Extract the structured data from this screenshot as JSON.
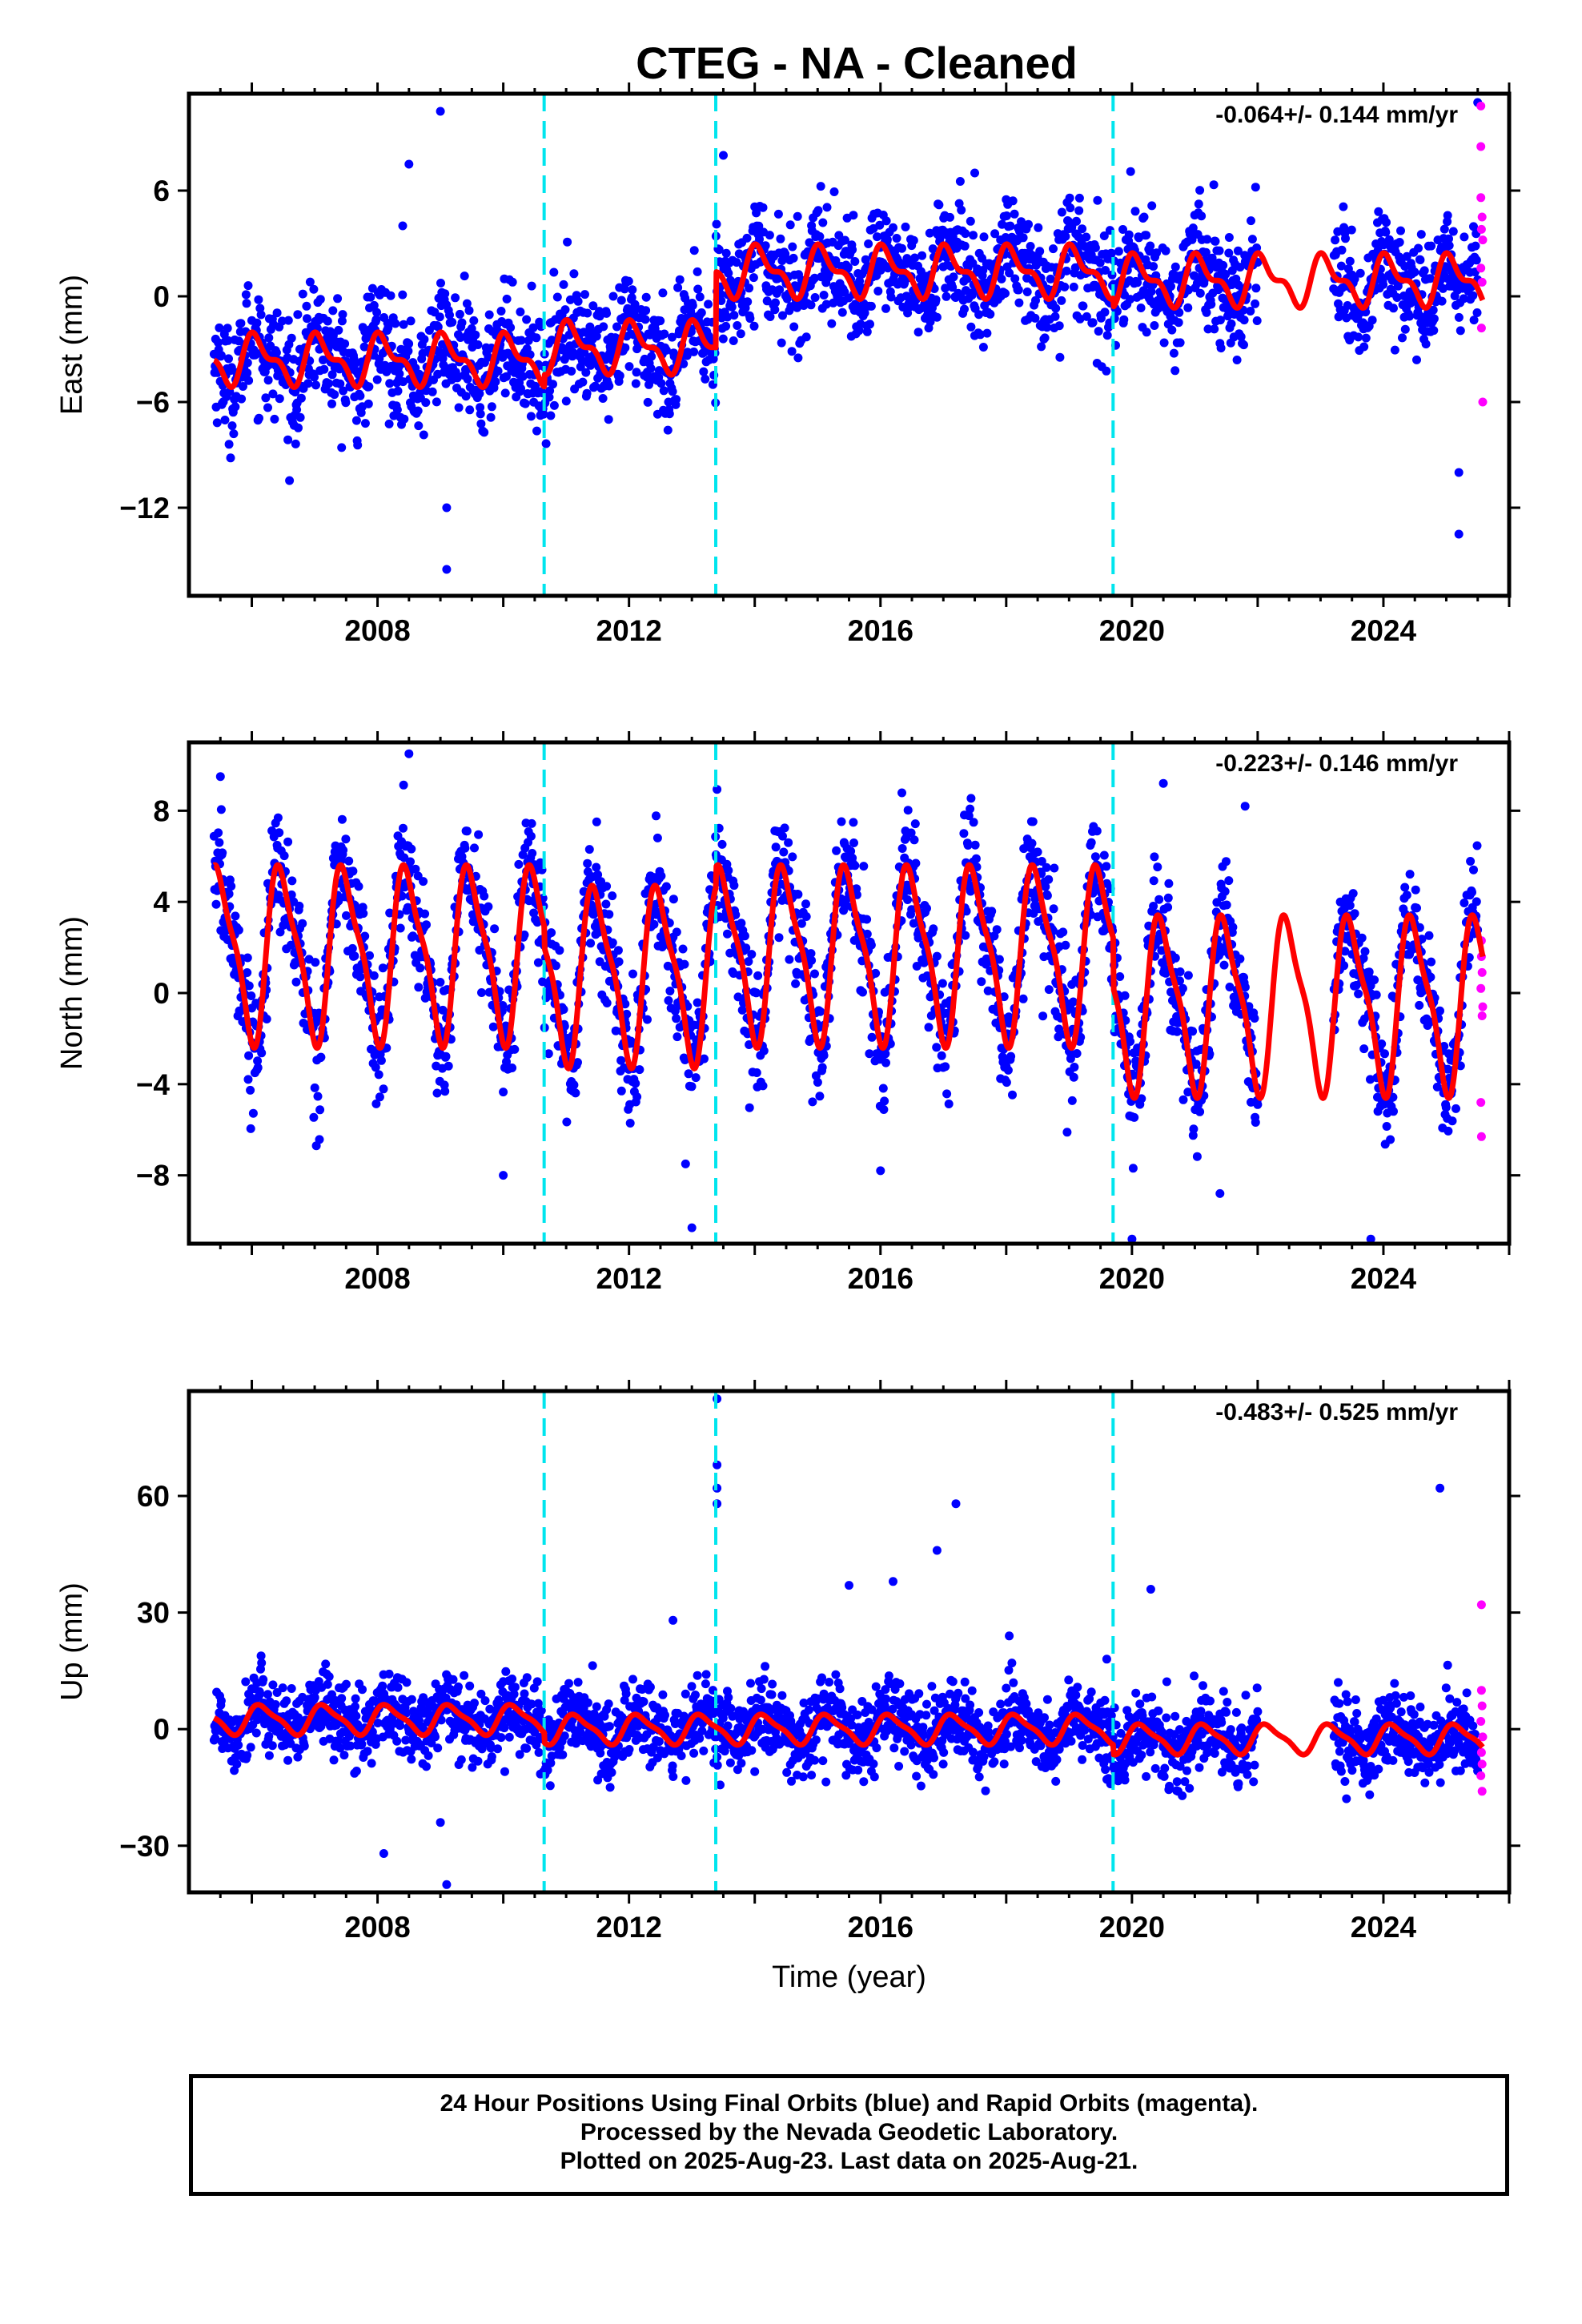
{
  "title": "CTEG  - NA - Cleaned",
  "footer": {
    "line1": "24 Hour Positions Using Final Orbits (blue) and Rapid Orbits (magenta).",
    "line2": "Processed by the Nevada Geodetic Laboratory.",
    "line3": "Plotted on 2025-Aug-23. Last data on 2025-Aug-21."
  },
  "colors": {
    "final": "#0000ff",
    "rapid": "#ff00ff",
    "model": "#ff0000",
    "steps": "#00e5ee"
  },
  "chart_data": [
    {
      "type": "scatter",
      "ylabel": "East (mm)",
      "xlabel": "",
      "rate": "-0.064+/- 0.144 mm/yr",
      "xlim": [
        2005.0,
        2026.0
      ],
      "ylim": [
        -17.0,
        11.5
      ],
      "yticks": [
        6,
        0,
        -6,
        -12
      ],
      "ytick_labels": [
        "6",
        "0",
        "−6",
        "−12"
      ],
      "xticks": [
        2008,
        2012,
        2016,
        2020,
        2024
      ],
      "xtick_labels": [
        "2008",
        "2012",
        "2016",
        "2020",
        "2024"
      ],
      "steps": [
        2010.65,
        2013.38,
        2019.7
      ],
      "gap": [
        2022.0,
        2023.2
      ],
      "data_start": 2005.4,
      "data_end": 2025.5,
      "rapid_start": 2025.5,
      "model": {
        "segments": [
          {
            "start": 2005.4,
            "end": 2010.65,
            "offset": -3.6
          },
          {
            "start": 2010.65,
            "end": 2013.38,
            "offset": -2.9
          },
          {
            "start": 2013.38,
            "end": 2019.7,
            "offset": 1.4
          },
          {
            "start": 2019.7,
            "end": 2025.6,
            "offset": 0.9
          }
        ],
        "annual_amp": 1.2,
        "annual_phase": 1.0,
        "semiannual_amp": 0.6,
        "semiannual_phase": 2.0
      },
      "scatter_sd": 1.6,
      "outliers": [
        [
          2009.0,
          10.5
        ],
        [
          2008.5,
          7.5
        ],
        [
          2009.1,
          -12.0
        ],
        [
          2009.1,
          -15.5
        ],
        [
          2013.5,
          8.0
        ],
        [
          2017.5,
          7.0
        ],
        [
          2025.2,
          -10.0
        ],
        [
          2025.2,
          -13.5
        ],
        [
          2025.5,
          11.0
        ],
        [
          2008.4,
          4.0
        ]
      ],
      "rapid_points": [
        [
          2025.55,
          10.8
        ],
        [
          2025.55,
          8.5
        ],
        [
          2025.55,
          5.6
        ],
        [
          2025.57,
          4.5
        ],
        [
          2025.56,
          3.8
        ],
        [
          2025.58,
          3.2
        ],
        [
          2025.55,
          1.6
        ],
        [
          2025.57,
          0.8
        ],
        [
          2025.56,
          -1.8
        ],
        [
          2025.58,
          -6.0
        ]
      ]
    },
    {
      "type": "scatter",
      "ylabel": "North (mm)",
      "xlabel": "",
      "rate": "-0.223+/- 0.146 mm/yr",
      "xlim": [
        2005.0,
        2026.0
      ],
      "ylim": [
        -11.0,
        11.0
      ],
      "yticks": [
        8,
        4,
        0,
        -4,
        -8
      ],
      "ytick_labels": [
        "8",
        "4",
        "0",
        "−4",
        "−8"
      ],
      "xticks": [
        2008,
        2012,
        2016,
        2020,
        2024
      ],
      "xtick_labels": [
        "2008",
        "2012",
        "2016",
        "2020",
        "2024"
      ],
      "steps": [
        2010.65,
        2013.38,
        2019.7
      ],
      "gap": [
        2022.0,
        2023.2
      ],
      "data_start": 2005.4,
      "data_end": 2025.5,
      "rapid_start": 2025.5,
      "model": {
        "segments": [
          {
            "start": 2005.4,
            "end": 2010.65,
            "offset": 1.8
          },
          {
            "start": 2010.65,
            "end": 2013.38,
            "offset": 0.9
          },
          {
            "start": 2013.38,
            "end": 2019.7,
            "offset": 1.8
          },
          {
            "start": 2019.7,
            "end": 2025.6,
            "offset": -0.4
          }
        ],
        "annual_amp": 3.6,
        "annual_phase": 4.8,
        "semiannual_amp": 1.0,
        "semiannual_phase": 3.6
      },
      "scatter_sd": 1.3,
      "outliers": [
        [
          2008.5,
          10.5
        ],
        [
          2005.5,
          9.5
        ],
        [
          2013.0,
          -10.3
        ],
        [
          2012.9,
          -7.5
        ],
        [
          2020.0,
          -10.8
        ],
        [
          2023.8,
          -10.8
        ],
        [
          2021.4,
          -8.8
        ],
        [
          2016.0,
          -7.8
        ],
        [
          2010.0,
          -8.0
        ],
        [
          2021.8,
          8.2
        ],
        [
          2020.5,
          9.2
        ]
      ],
      "rapid_points": [
        [
          2025.56,
          2.3
        ],
        [
          2025.56,
          1.6
        ],
        [
          2025.57,
          0.9
        ],
        [
          2025.55,
          0.2
        ],
        [
          2025.58,
          -0.6
        ],
        [
          2025.57,
          -1.0
        ],
        [
          2025.55,
          -4.8
        ],
        [
          2025.56,
          -6.3
        ]
      ]
    },
    {
      "type": "scatter",
      "ylabel": "Up (mm)",
      "xlabel": "Time (year)",
      "rate": "-0.483+/- 0.525 mm/yr",
      "xlim": [
        2005.0,
        2026.0
      ],
      "ylim": [
        -42.0,
        87.0
      ],
      "yticks": [
        60,
        30,
        0,
        -30
      ],
      "ytick_labels": [
        "60",
        "30",
        "0",
        "−30"
      ],
      "xticks": [
        2008,
        2012,
        2016,
        2020,
        2024
      ],
      "xtick_labels": [
        "2008",
        "2012",
        "2016",
        "2020",
        "2024"
      ],
      "steps": [
        2010.65,
        2013.38,
        2019.7
      ],
      "gap": [
        2022.0,
        2023.2
      ],
      "data_start": 2005.4,
      "data_end": 2025.5,
      "rapid_start": 2025.5,
      "model": {
        "segments": [
          {
            "start": 2005.4,
            "end": 2010.65,
            "offset": 2.5
          },
          {
            "start": 2010.65,
            "end": 2013.38,
            "offset": 0.0
          },
          {
            "start": 2013.38,
            "end": 2019.7,
            "offset": 0.0
          },
          {
            "start": 2019.7,
            "end": 2025.6,
            "offset": -2.5
          }
        ],
        "annual_amp": 3.5,
        "annual_phase": 0.5,
        "semiannual_amp": 1.0,
        "semiannual_phase": 1.2
      },
      "scatter_sd": 5.0,
      "outliers": [
        [
          2013.4,
          85.0
        ],
        [
          2013.4,
          68.0
        ],
        [
          2013.4,
          62.0
        ],
        [
          2013.4,
          58.0
        ],
        [
          2017.2,
          58.0
        ],
        [
          2016.9,
          46.0
        ],
        [
          2015.5,
          37.0
        ],
        [
          2024.9,
          62.0
        ],
        [
          2016.2,
          38.0
        ],
        [
          2020.3,
          36.0
        ],
        [
          2012.7,
          28.0
        ],
        [
          2009.1,
          -40.0
        ],
        [
          2008.1,
          -32.0
        ],
        [
          2009.0,
          -24.0
        ],
        [
          2019.6,
          18.0
        ]
      ],
      "rapid_points": [
        [
          2025.56,
          32.0
        ],
        [
          2025.56,
          10.0
        ],
        [
          2025.57,
          6.0
        ],
        [
          2025.55,
          2.0
        ],
        [
          2025.58,
          -2.0
        ],
        [
          2025.56,
          -6.0
        ],
        [
          2025.57,
          -9.0
        ],
        [
          2025.55,
          -12.0
        ],
        [
          2025.57,
          -16.0
        ]
      ]
    }
  ]
}
